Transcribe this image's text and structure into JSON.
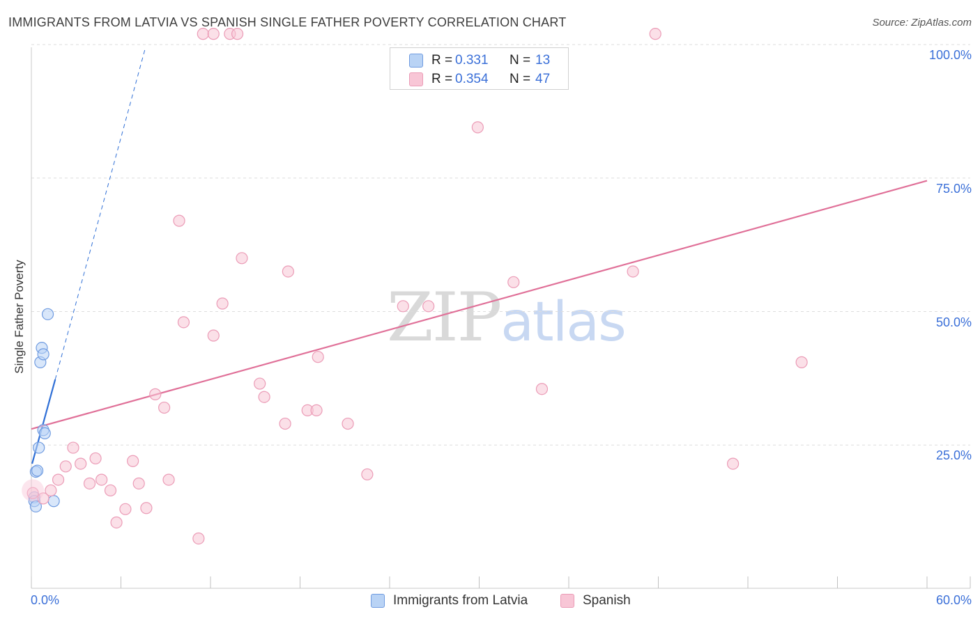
{
  "title": "IMMIGRANTS FROM LATVIA VS SPANISH SINGLE FATHER POVERTY CORRELATION CHART",
  "source": "Source: ZipAtlas.com",
  "watermark": {
    "zip": "ZIP",
    "atlas": "atlas"
  },
  "colors": {
    "blue_fill": "#b9d3f5",
    "blue_stroke": "#6f9be0",
    "blue_line": "#2f6fd6",
    "pink_fill": "#f8c6d6",
    "pink_stroke": "#eb9bb6",
    "pink_line": "#e07098",
    "accent_text": "#3a6fd8",
    "grid": "#dddddd"
  },
  "legend_top": {
    "rows": [
      {
        "r_label": "R =",
        "r_value": "0.331",
        "n_label": "N =",
        "n_value": "13",
        "series": "blue"
      },
      {
        "r_label": "R =",
        "r_value": "0.354",
        "n_label": "N =",
        "n_value": "47",
        "series": "pink"
      }
    ]
  },
  "legend_bottom": {
    "items": [
      {
        "label": "Immigrants from Latvia",
        "series": "blue"
      },
      {
        "label": "Spanish",
        "series": "pink"
      }
    ]
  },
  "chart_data": {
    "type": "scatter",
    "title": "IMMIGRANTS FROM LATVIA VS SPANISH SINGLE FATHER POVERTY CORRELATION CHART",
    "xlabel": "",
    "ylabel": "Single Father Poverty",
    "xlim": [
      0,
      60
    ],
    "ylim": [
      0,
      105
    ],
    "x_tick_labels": [
      {
        "value": 0,
        "label": "0.0%"
      },
      {
        "value": 60,
        "label": "60.0%"
      }
    ],
    "y_tick_labels": [
      {
        "value": 25,
        "label": "25.0%"
      },
      {
        "value": 50,
        "label": "50.0%"
      },
      {
        "value": 75,
        "label": "75.0%"
      },
      {
        "value": 100,
        "label": "100.0%"
      }
    ],
    "y_gridlines": [
      25,
      50,
      75,
      100
    ],
    "x_minor_ticks": [
      0,
      6,
      12,
      18,
      24,
      30,
      36,
      42,
      48,
      54,
      60
    ],
    "series": [
      {
        "name": "Immigrants from Latvia",
        "color": "blue",
        "points": [
          [
            0.2,
            15.2
          ],
          [
            0.2,
            14.5
          ],
          [
            0.3,
            13.5
          ],
          [
            0.3,
            20.0
          ],
          [
            0.4,
            20.2
          ],
          [
            0.5,
            24.5
          ],
          [
            0.6,
            40.5
          ],
          [
            0.7,
            43.2
          ],
          [
            0.8,
            42.0
          ],
          [
            0.8,
            27.8
          ],
          [
            0.9,
            27.2
          ],
          [
            1.1,
            49.5
          ],
          [
            1.5,
            14.5
          ]
        ],
        "trend_solid": [
          [
            0.05,
            21.5
          ],
          [
            1.6,
            37.3
          ]
        ],
        "trend_dashed": [
          [
            1.6,
            37.3
          ],
          [
            7.6,
            99.0
          ]
        ]
      },
      {
        "name": "Spanish",
        "color": "pink",
        "points": [
          [
            0.1,
            16.0
          ],
          [
            0.8,
            15.0
          ],
          [
            1.3,
            16.5
          ],
          [
            1.8,
            18.5
          ],
          [
            2.3,
            21.0
          ],
          [
            2.8,
            24.5
          ],
          [
            3.3,
            21.5
          ],
          [
            3.9,
            17.8
          ],
          [
            4.3,
            22.5
          ],
          [
            4.7,
            18.5
          ],
          [
            5.3,
            16.5
          ],
          [
            5.7,
            10.5
          ],
          [
            6.3,
            13.0
          ],
          [
            6.8,
            22.0
          ],
          [
            7.2,
            17.8
          ],
          [
            7.7,
            13.2
          ],
          [
            8.3,
            34.5
          ],
          [
            8.9,
            32.0
          ],
          [
            9.2,
            18.5
          ],
          [
            9.9,
            67.0
          ],
          [
            10.2,
            48.0
          ],
          [
            11.2,
            7.5
          ],
          [
            11.5,
            102.0
          ],
          [
            12.2,
            102.0
          ],
          [
            12.2,
            45.5
          ],
          [
            12.8,
            51.5
          ],
          [
            13.3,
            102.0
          ],
          [
            13.8,
            102.0
          ],
          [
            14.1,
            60.0
          ],
          [
            15.3,
            36.5
          ],
          [
            15.6,
            34.0
          ],
          [
            17.0,
            29.0
          ],
          [
            17.2,
            57.5
          ],
          [
            18.5,
            31.5
          ],
          [
            19.1,
            31.5
          ],
          [
            19.2,
            41.5
          ],
          [
            21.2,
            29.0
          ],
          [
            22.5,
            19.5
          ],
          [
            24.9,
            51.0
          ],
          [
            26.6,
            51.0
          ],
          [
            29.9,
            84.5
          ],
          [
            32.3,
            55.5
          ],
          [
            34.2,
            35.5
          ],
          [
            40.3,
            57.5
          ],
          [
            41.8,
            102.0
          ],
          [
            47.0,
            21.5
          ],
          [
            51.6,
            40.5
          ]
        ],
        "trend_solid": [
          [
            0,
            28.0
          ],
          [
            60,
            74.5
          ]
        ]
      }
    ]
  }
}
